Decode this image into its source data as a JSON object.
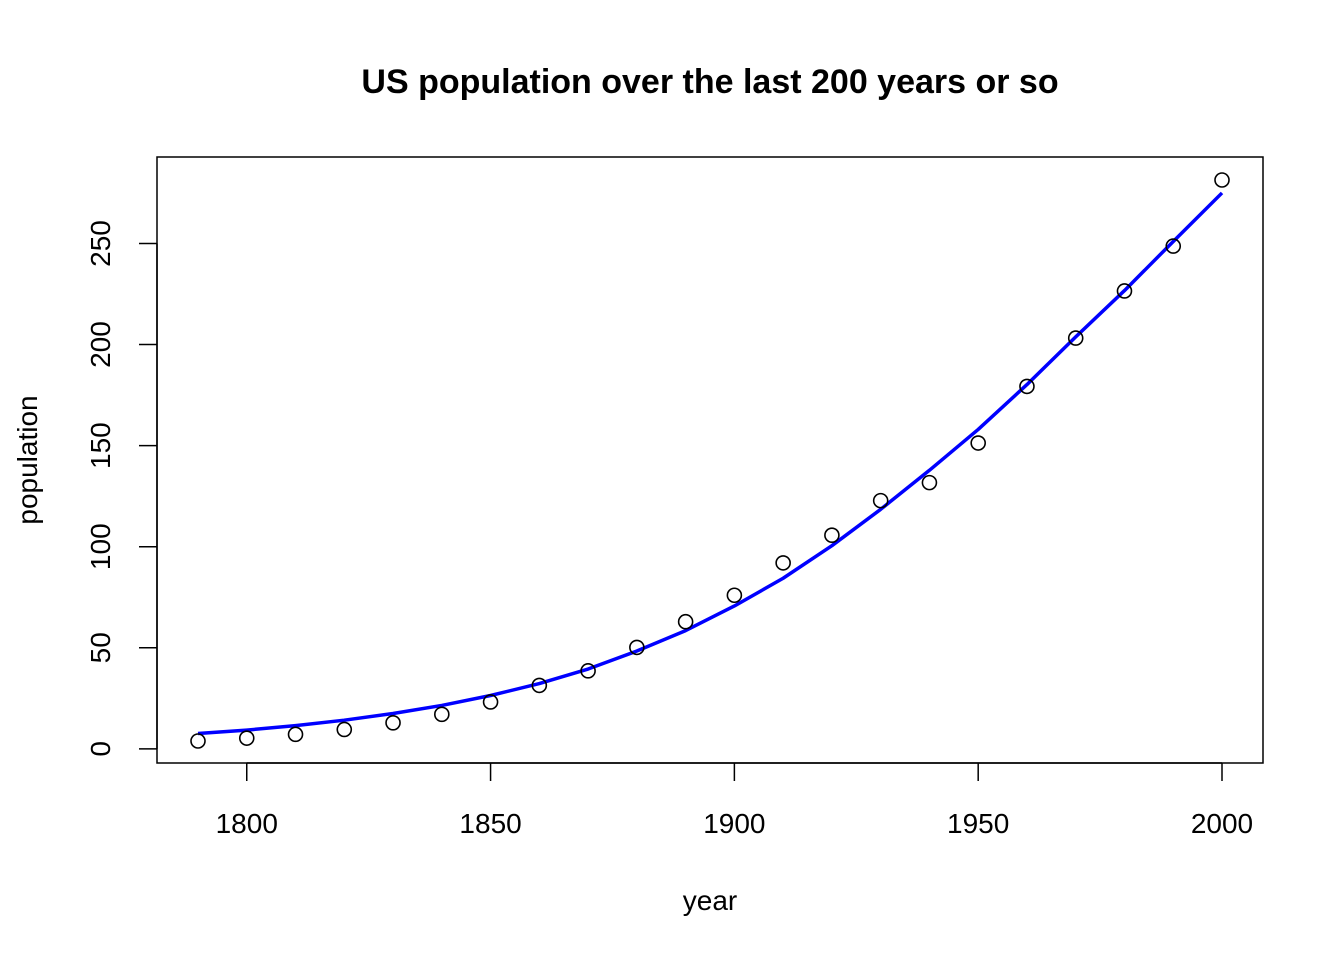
{
  "chart_data": {
    "type": "scatter",
    "title": "US population over the last 200 years or so",
    "xlabel": "year",
    "ylabel": "population",
    "xlim": [
      1790,
      2000
    ],
    "ylim": [
      3.9,
      281.4
    ],
    "xticks": [
      1800,
      1850,
      1900,
      1950,
      2000
    ],
    "yticks": [
      0,
      50,
      100,
      150,
      200,
      250
    ],
    "grid": false,
    "colors": {
      "points": "#000000",
      "fit_line": "#0000ff"
    },
    "series": [
      {
        "type": "points",
        "x": [
          1790,
          1800,
          1810,
          1820,
          1830,
          1840,
          1850,
          1860,
          1870,
          1880,
          1890,
          1900,
          1910,
          1920,
          1930,
          1940,
          1950,
          1960,
          1970,
          1980,
          1990,
          2000
        ],
        "y": [
          3.9,
          5.3,
          7.2,
          9.6,
          12.9,
          17.1,
          23.2,
          31.4,
          38.6,
          50.2,
          62.9,
          76.0,
          92.0,
          105.7,
          122.8,
          131.7,
          151.3,
          179.3,
          203.2,
          226.5,
          248.7,
          281.4
        ]
      },
      {
        "type": "line",
        "x": [
          1790,
          1800,
          1810,
          1820,
          1830,
          1840,
          1850,
          1860,
          1870,
          1880,
          1890,
          1900,
          1910,
          1920,
          1930,
          1940,
          1950,
          1960,
          1970,
          1980,
          1990,
          2000
        ],
        "y": [
          7.6,
          9.3,
          11.5,
          14.2,
          17.5,
          21.5,
          26.4,
          32.3,
          39.5,
          48.4,
          58.5,
          70.7,
          84.4,
          100.5,
          118.5,
          137.8,
          158.0,
          180.2,
          203.8,
          226.7,
          251.0,
          275.0
        ]
      }
    ]
  }
}
